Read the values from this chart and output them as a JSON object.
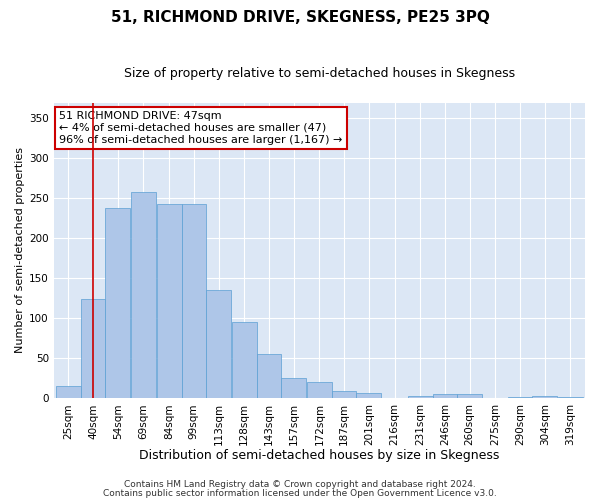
{
  "title": "51, RICHMOND DRIVE, SKEGNESS, PE25 3PQ",
  "subtitle": "Size of property relative to semi-detached houses in Skegness",
  "xlabel": "Distribution of semi-detached houses by size in Skegness",
  "ylabel": "Number of semi-detached properties",
  "footer_line1": "Contains HM Land Registry data © Crown copyright and database right 2024.",
  "footer_line2": "Contains public sector information licensed under the Open Government Licence v3.0.",
  "annotation_title": "51 RICHMOND DRIVE: 47sqm",
  "annotation_line2": "← 4% of semi-detached houses are smaller (47)",
  "annotation_line3": "96% of semi-detached houses are larger (1,167) →",
  "property_sqm": 47,
  "bar_categories": [
    "25sqm",
    "40sqm",
    "54sqm",
    "69sqm",
    "84sqm",
    "99sqm",
    "113sqm",
    "128sqm",
    "143sqm",
    "157sqm",
    "172sqm",
    "187sqm",
    "201sqm",
    "216sqm",
    "231sqm",
    "246sqm",
    "260sqm",
    "275sqm",
    "290sqm",
    "304sqm",
    "319sqm"
  ],
  "bar_values": [
    16,
    124,
    238,
    258,
    243,
    243,
    135,
    95,
    56,
    25,
    20,
    9,
    7,
    0,
    3,
    5,
    5,
    0,
    2,
    3,
    2
  ],
  "bar_left_edges": [
    25,
    40,
    54,
    69,
    84,
    99,
    113,
    128,
    143,
    157,
    172,
    187,
    201,
    216,
    231,
    246,
    260,
    275,
    290,
    304,
    319
  ],
  "bar_widths": [
    15,
    14,
    15,
    15,
    15,
    14,
    15,
    15,
    14,
    15,
    15,
    14,
    15,
    15,
    15,
    14,
    15,
    15,
    14,
    15,
    15
  ],
  "bar_color": "#aec6e8",
  "bar_edge_color": "#5a9fd4",
  "vline_color": "#cc0000",
  "vline_x": 47,
  "bg_color": "#ffffff",
  "plot_bg_color": "#dce7f5",
  "annotation_box_color": "#ffffff",
  "annotation_box_edge": "#cc0000",
  "ylim": [
    0,
    370
  ],
  "yticks": [
    0,
    50,
    100,
    150,
    200,
    250,
    300,
    350
  ],
  "title_fontsize": 11,
  "subtitle_fontsize": 9,
  "xlabel_fontsize": 9,
  "ylabel_fontsize": 8,
  "tick_fontsize": 7.5,
  "annotation_fontsize": 8,
  "footer_fontsize": 6.5
}
